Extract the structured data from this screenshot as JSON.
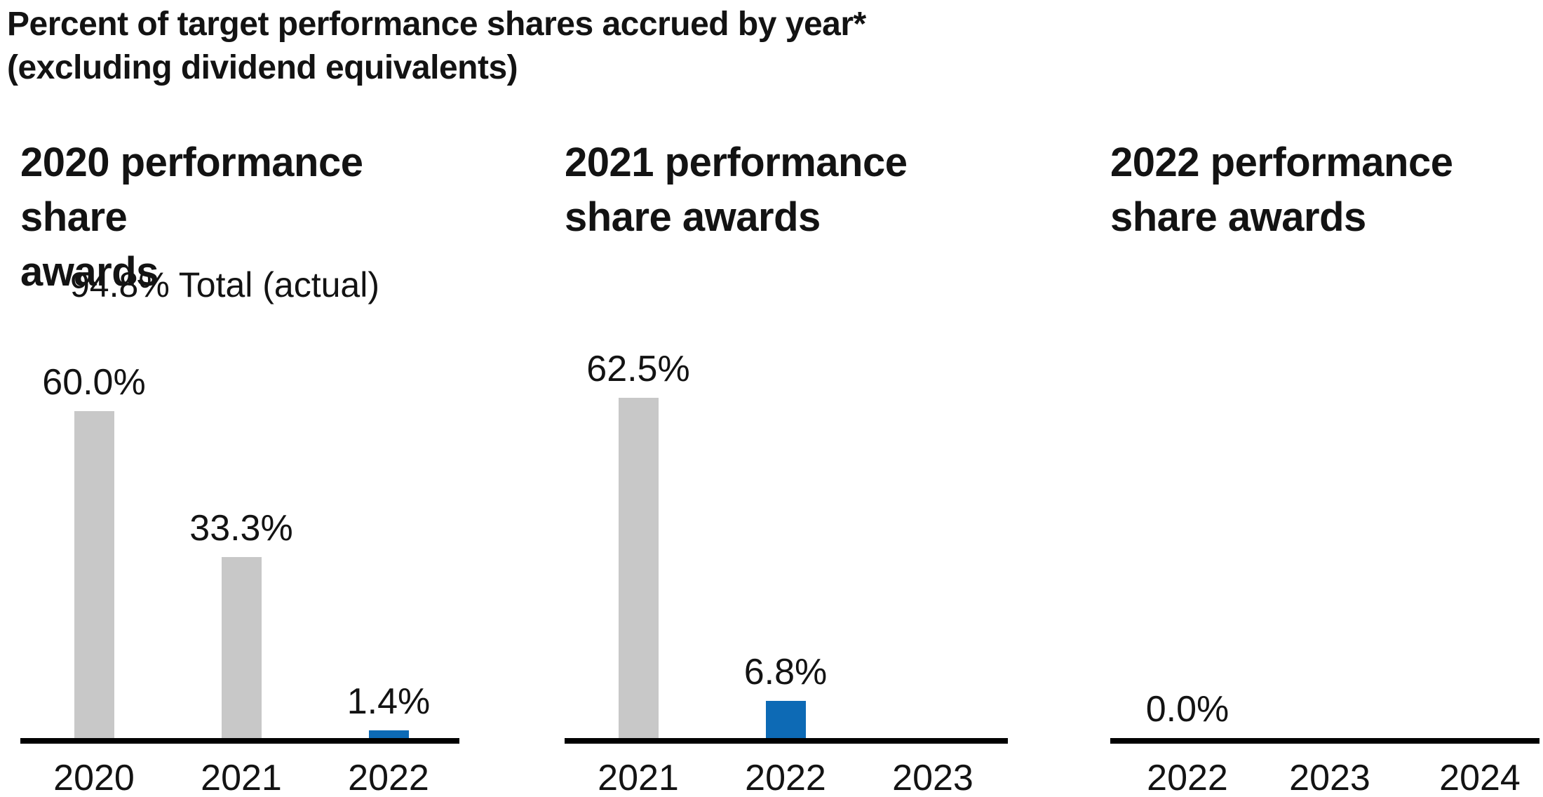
{
  "figure": {
    "title": "Percent of target performance shares accrued by year*\n(excluding dividend equivalents)"
  },
  "colors": {
    "bar_gray": "#c8c8c8",
    "bar_blue": "#0d6ab5",
    "axis": "#000000",
    "text": "#131313"
  },
  "chart_data": [
    {
      "type": "bar",
      "title": "2020 performance share\nawards",
      "subtitle": "94.8% Total (actual)",
      "categories": [
        "2020",
        "2021",
        "2022"
      ],
      "values": [
        60.0,
        33.3,
        1.4
      ],
      "value_labels": [
        "60.0%",
        "33.3%",
        "1.4%"
      ],
      "bar_colors": [
        "gray",
        "gray",
        "blue"
      ],
      "ylim": [
        0,
        65
      ],
      "grid": false,
      "legend": "none"
    },
    {
      "type": "bar",
      "title": "2021 performance\nshare awards",
      "subtitle": "",
      "categories": [
        "2021",
        "2022",
        "2023"
      ],
      "values": [
        62.5,
        6.8,
        null
      ],
      "value_labels": [
        "62.5%",
        "6.8%",
        ""
      ],
      "bar_colors": [
        "gray",
        "blue",
        null
      ],
      "ylim": [
        0,
        65
      ],
      "grid": false,
      "legend": "none"
    },
    {
      "type": "bar",
      "title": "2022 performance\nshare awards",
      "subtitle": "",
      "categories": [
        "2022",
        "2023",
        "2024"
      ],
      "values": [
        0.0,
        null,
        null
      ],
      "value_labels": [
        "0.0%",
        "",
        ""
      ],
      "bar_colors": [
        null,
        null,
        null
      ],
      "ylim": [
        0,
        65
      ],
      "grid": false,
      "legend": "none"
    }
  ]
}
